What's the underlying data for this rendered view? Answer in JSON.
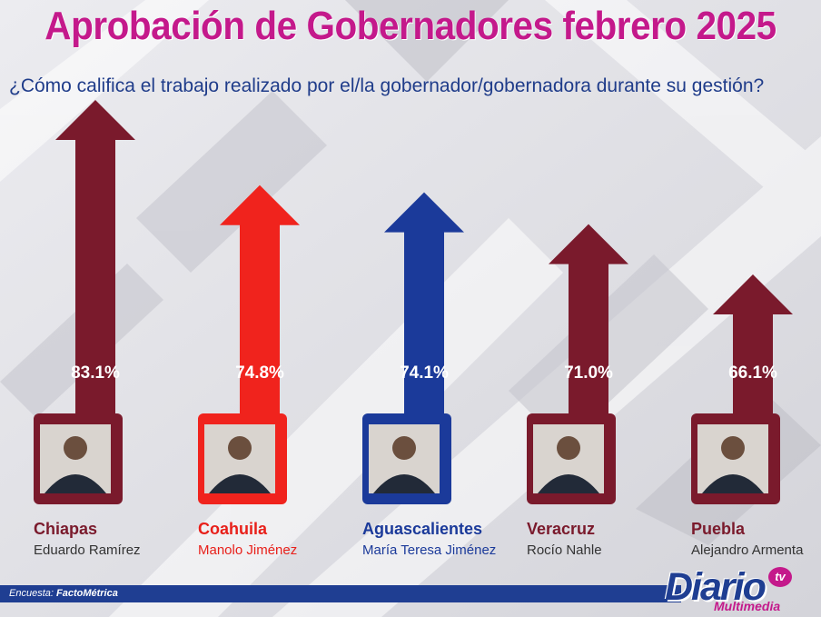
{
  "header": {
    "title": "Aprobación de Gobernadores febrero 2025",
    "subtitle": "¿Cómo califica el trabajo realizado por el/la gobernador/gobernadora durante su gestión?"
  },
  "chart_data": {
    "type": "bar",
    "title": "Aprobación de Gobernadores febrero 2025",
    "subtitle": "¿Cómo califica el trabajo realizado por el/la gobernador/gobernadora durante su gestión?",
    "categories": [
      "Chiapas",
      "Coahuila",
      "Aguascalientes",
      "Veracruz",
      "Puebla"
    ],
    "governors": [
      "Eduardo Ramírez",
      "Manolo Jiménez",
      "María Teresa Jiménez",
      "Rocío Nahle",
      "Alejandro Armenta"
    ],
    "values": [
      83.1,
      74.8,
      74.1,
      71.0,
      66.1
    ],
    "labels": [
      "83.1%",
      "74.8%",
      "74.1%",
      "71.0%",
      "66.1%"
    ],
    "colors": [
      "#7a1a2c",
      "#f0231d",
      "#1b3a9a",
      "#7a1a2c",
      "#7a1a2c"
    ],
    "label_colors": [
      "#7a1a2c",
      "#e8201a",
      "#1b3a9a",
      "#7a1a2c",
      "#7a1a2c"
    ],
    "grid": false,
    "legend": "none"
  },
  "footer": {
    "source_label": "Encuesta:",
    "source_name": "FactoMétrica"
  },
  "logo": {
    "main": "Diario",
    "tv": "tv",
    "sub": "Multimedia"
  },
  "colors": {
    "title": "#c4198b",
    "subtitle": "#1f3c8a",
    "footer_bar": "#1f3e92"
  },
  "icons": [
    "up-arrow-icon",
    "governor-photo"
  ]
}
